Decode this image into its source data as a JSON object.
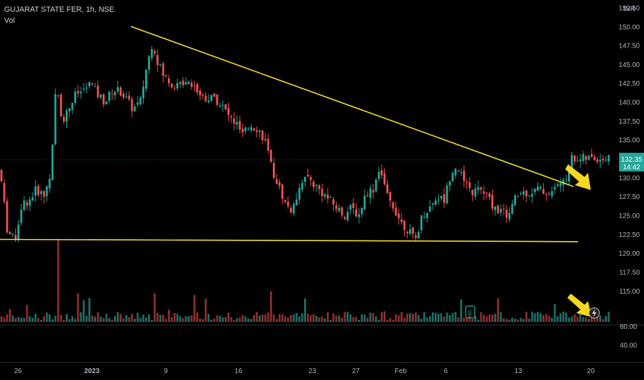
{
  "header": {
    "title": "GUJARAT STATE FER, 1h, NSE",
    "volume_label": "Vol",
    "currency": "INR"
  },
  "colors": {
    "up": "#26a69a",
    "down": "#ef5350",
    "up_vol": "#1f6b63",
    "down_vol": "#8c2f2f",
    "trendline": "#f5e130",
    "arrow": "#f5d820",
    "background": "#000000"
  },
  "chart_data": {
    "type": "candlestick",
    "title": "GUJARAT STATE FER, 1h, NSE",
    "price_axis": {
      "range": [
        110.5,
        153.5
      ],
      "ticks": [
        "152.50",
        "150.00",
        "147.50",
        "145.00",
        "142.50",
        "140.00",
        "137.50",
        "135.00",
        "132.50",
        "130.00",
        "127.50",
        "125.00",
        "122.50",
        "120.00",
        "117.50",
        "115.00"
      ]
    },
    "volume_axis": {
      "label": "Vol",
      "ticks": [
        "80.00",
        "40.00"
      ]
    },
    "x_ticks": [
      "26",
      "2023",
      "9",
      "16",
      "23",
      "27",
      "Feb",
      "6",
      "13",
      "20"
    ],
    "last_price": {
      "value": "132.35",
      "countdown": "14:42"
    },
    "trendlines": [
      {
        "name": "descending-resistance",
        "from": {
          "x": 0.2144,
          "y": 150.0
        },
        "to": {
          "x": 0.9399,
          "y": 128.8
        }
      },
      {
        "name": "horizontal-support",
        "from": {
          "x": 0.0,
          "y": 121.8
        },
        "to": {
          "x": 0.9474,
          "y": 121.5
        }
      }
    ],
    "annotations": [
      "breakout arrow near 130",
      "arrow pointing to flash icon at volume"
    ],
    "icons": [
      "earnings-icon",
      "flash-icon"
    ],
    "price_path": [
      [
        0.0,
        131.0
      ],
      [
        0.012,
        123.0
      ],
      [
        0.024,
        121.6
      ],
      [
        0.036,
        126.5
      ],
      [
        0.048,
        127.0
      ],
      [
        0.06,
        128.5
      ],
      [
        0.072,
        127.5
      ],
      [
        0.084,
        131.0
      ],
      [
        0.092,
        142.5
      ],
      [
        0.102,
        137.5
      ],
      [
        0.112,
        139.0
      ],
      [
        0.124,
        141.0
      ],
      [
        0.136,
        141.5
      ],
      [
        0.148,
        142.5
      ],
      [
        0.16,
        141.0
      ],
      [
        0.172,
        140.0
      ],
      [
        0.184,
        141.5
      ],
      [
        0.196,
        141.5
      ],
      [
        0.206,
        140.5
      ],
      [
        0.218,
        139.0
      ],
      [
        0.23,
        140.0
      ],
      [
        0.24,
        144.5
      ],
      [
        0.25,
        148.0
      ],
      [
        0.258,
        145.5
      ],
      [
        0.268,
        143.5
      ],
      [
        0.28,
        142.5
      ],
      [
        0.292,
        142.0
      ],
      [
        0.304,
        143.0
      ],
      [
        0.316,
        142.5
      ],
      [
        0.328,
        141.0
      ],
      [
        0.34,
        140.5
      ],
      [
        0.352,
        140.5
      ],
      [
        0.364,
        139.5
      ],
      [
        0.376,
        138.0
      ],
      [
        0.388,
        137.0
      ],
      [
        0.398,
        135.5
      ],
      [
        0.41,
        137.0
      ],
      [
        0.422,
        136.5
      ],
      [
        0.434,
        135.0
      ],
      [
        0.444,
        131.5
      ],
      [
        0.456,
        129.0
      ],
      [
        0.468,
        126.5
      ],
      [
        0.48,
        125.5
      ],
      [
        0.492,
        129.5
      ],
      [
        0.504,
        130.0
      ],
      [
        0.516,
        129.0
      ],
      [
        0.528,
        128.0
      ],
      [
        0.54,
        127.0
      ],
      [
        0.552,
        126.0
      ],
      [
        0.564,
        125.0
      ],
      [
        0.576,
        126.0
      ],
      [
        0.588,
        125.0
      ],
      [
        0.6,
        128.0
      ],
      [
        0.612,
        128.5
      ],
      [
        0.622,
        131.5
      ],
      [
        0.634,
        127.5
      ],
      [
        0.646,
        126.0
      ],
      [
        0.658,
        124.0
      ],
      [
        0.67,
        123.0
      ],
      [
        0.68,
        121.5
      ],
      [
        0.692,
        125.0
      ],
      [
        0.704,
        126.0
      ],
      [
        0.716,
        127.5
      ],
      [
        0.728,
        127.0
      ],
      [
        0.74,
        131.0
      ],
      [
        0.75,
        131.5
      ],
      [
        0.762,
        129.0
      ],
      [
        0.774,
        128.0
      ],
      [
        0.786,
        128.5
      ],
      [
        0.798,
        127.5
      ],
      [
        0.81,
        126.0
      ],
      [
        0.822,
        125.5
      ],
      [
        0.834,
        125.0
      ],
      [
        0.846,
        127.5
      ],
      [
        0.858,
        128.0
      ],
      [
        0.87,
        128.0
      ],
      [
        0.882,
        128.5
      ],
      [
        0.894,
        128.0
      ],
      [
        0.906,
        128.0
      ],
      [
        0.916,
        129.5
      ],
      [
        0.926,
        129.0
      ],
      [
        0.93,
        131.0
      ],
      [
        0.934,
        132.5
      ]
    ]
  }
}
